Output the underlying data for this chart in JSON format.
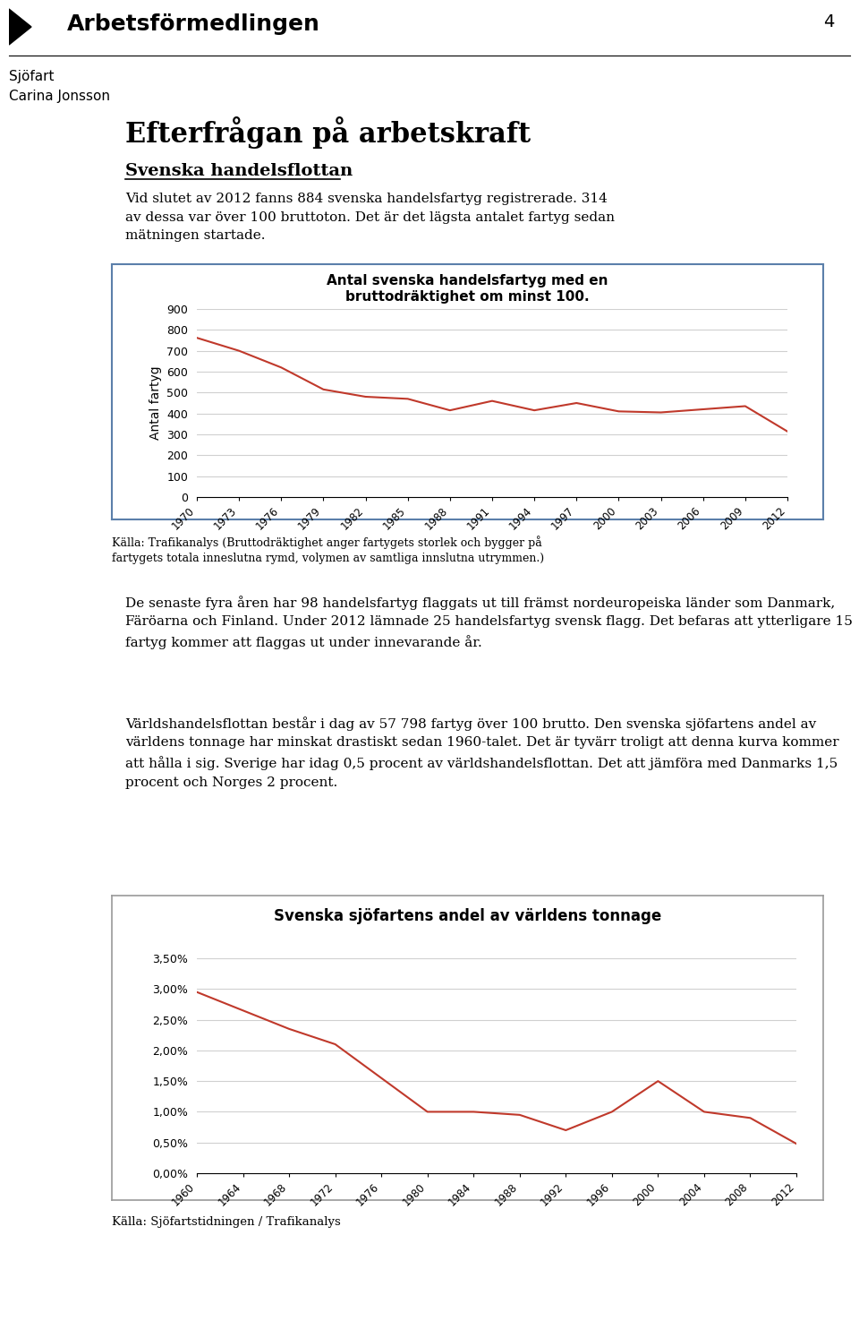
{
  "page_number": "4",
  "subtitle1": "Sjöfart",
  "subtitle2": "Carina Jonsson",
  "section_title": "Efterfrågan på arbetskraft",
  "subsection_title": "Svenska handelsflottan",
  "body_text1": "Vid slutet av 2012 fanns 884 svenska handelsfartyg registrerade. 314\nav dessa var över 100 bruttoton. Det är det lägsta antalet fartyg sedan\nmätningen startade.",
  "chart1_title": "Antal svenska handelsfartyg med en\nbruttodräktighet om minst 100.",
  "chart1_ylabel": "Antal fartyg",
  "chart1_years": [
    1970,
    1973,
    1976,
    1979,
    1982,
    1985,
    1988,
    1991,
    1994,
    1997,
    2000,
    2003,
    2006,
    2009,
    2012
  ],
  "chart1_values": [
    762,
    700,
    620,
    515,
    480,
    470,
    415,
    460,
    415,
    450,
    410,
    405,
    420,
    435,
    314
  ],
  "chart1_ylim": [
    0,
    900
  ],
  "chart1_yticks": [
    0,
    100,
    200,
    300,
    400,
    500,
    600,
    700,
    800,
    900
  ],
  "chart1_source": "Källa: Trafikanalys (Bruttodräktighet anger fartygets storlek och bygger på\nfartygets totala inneslutna rymd, volymen av samtliga innslutna utrymmen.)",
  "body_text2": "De senaste fyra åren har 98 handelsfartyg flaggats ut till främst nordeuropeiska länder som Danmark, Färöarna och Finland. Under 2012 lämnade 25 handelsfartyg svensk flagg. Det befaras att ytterligare 15 fartyg kommer att flaggas ut under innevarande år.",
  "body_text3": "Världshandelsflottan består i dag av 57 798 fartyg över 100 brutto. Den svenska sjöfartens andel av världens tonnage har minskat drastiskt sedan 1960-talet. Det är tyvärr troligt att denna kurva kommer att hålla i sig. Sverige har idag 0,5 procent av världshandelsflottan. Det att jämföra med Danmarks 1,5 procent och Norges 2 procent.",
  "chart2_title": "Svenska sjöfartens andel av världens tonnage",
  "chart2_years": [
    1960,
    1964,
    1968,
    1972,
    1976,
    1980,
    1984,
    1988,
    1992,
    1996,
    2000,
    2004,
    2008,
    2012
  ],
  "chart2_values": [
    2.95,
    2.65,
    2.35,
    2.1,
    1.55,
    1.0,
    1.0,
    0.95,
    0.7,
    1.0,
    1.5,
    1.0,
    0.9,
    0.48
  ],
  "chart2_ylim": [
    0,
    3.5
  ],
  "chart2_yticks": [
    0.0,
    0.5,
    1.0,
    1.5,
    2.0,
    2.5,
    3.0,
    3.5
  ],
  "chart2_source": "Källa: Sjöfartstidningen / Trafikanalys",
  "line_color": "#c0392b",
  "bg_color": "#ffffff",
  "chart_border_color": "#5b7faa",
  "chart2_border_color": "#999999",
  "text_color": "#000000",
  "grid_color": "#d0d0d0"
}
